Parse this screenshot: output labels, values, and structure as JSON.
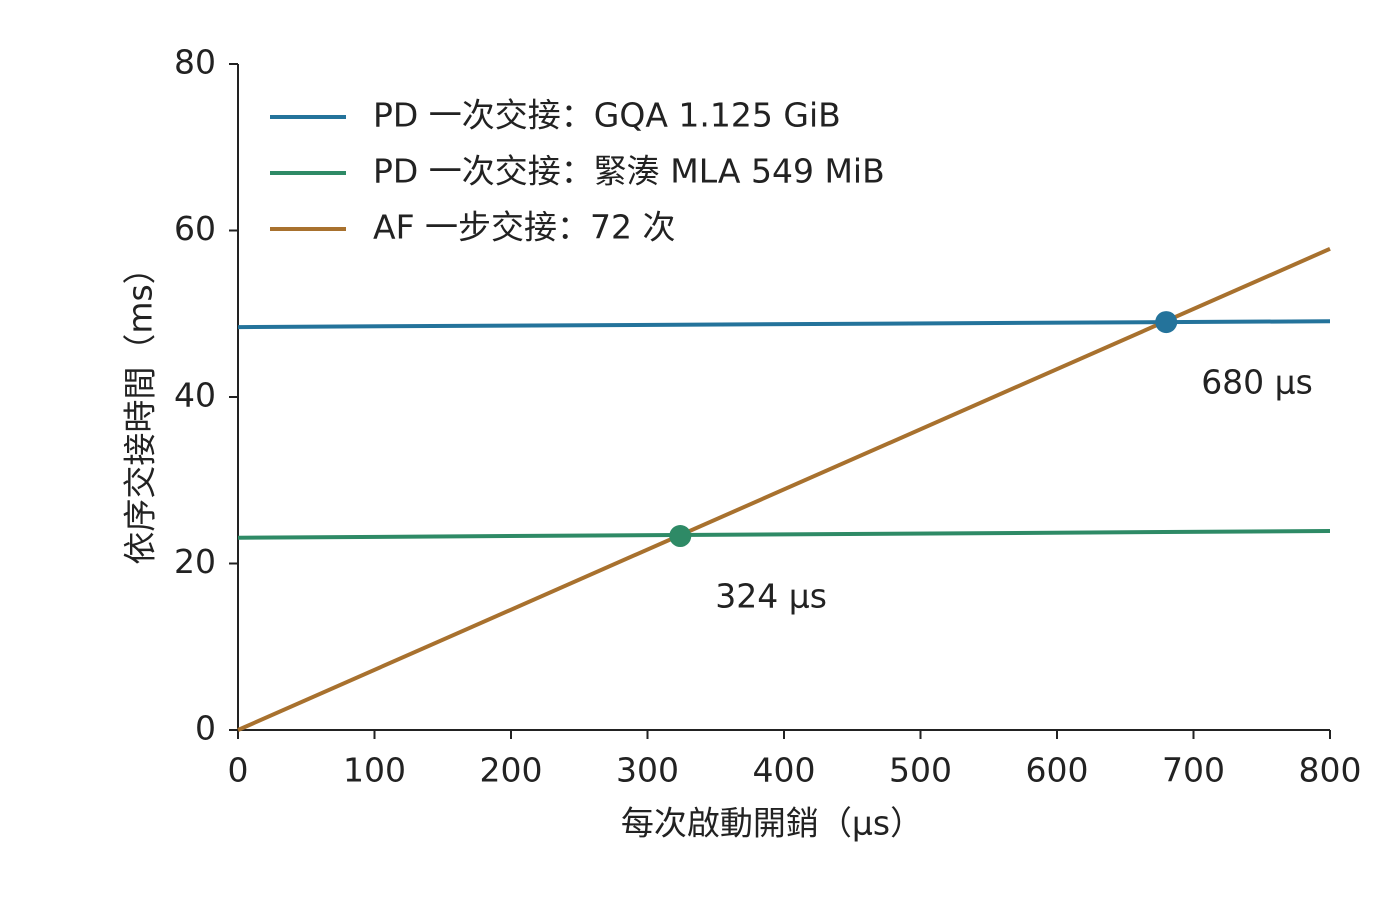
{
  "chart_data": {
    "type": "line",
    "xlabel": "每次啟動開銷（µs）",
    "ylabel": "依序交接時間（ms）",
    "x": [
      0,
      800
    ],
    "series": [
      {
        "name": "PD 一次交接：GQA 1.125 GiB",
        "color": "#24739b",
        "values": [
          48.4,
          49.1
        ]
      },
      {
        "name": "PD 一次交接：緊湊 MLA 549 MiB",
        "color": "#2e8a66",
        "values": [
          23.1,
          23.9
        ]
      },
      {
        "name": "AF 一步交接：72 次",
        "color": "#a8712e",
        "values": [
          0,
          57.8
        ]
      }
    ],
    "annotations": [
      {
        "x": 680,
        "y": 49.0,
        "label": "680 µs",
        "color": "#24739b"
      },
      {
        "x": 324,
        "y": 23.3,
        "label": "324 µs",
        "color": "#2e8a66"
      }
    ],
    "xlim": [
      0,
      800
    ],
    "ylim": [
      0,
      80
    ],
    "xticks": [
      0,
      100,
      200,
      300,
      400,
      500,
      600,
      700,
      800
    ],
    "yticks": [
      0,
      20,
      40,
      60,
      80
    ],
    "grid": false,
    "legend": "upper left"
  }
}
